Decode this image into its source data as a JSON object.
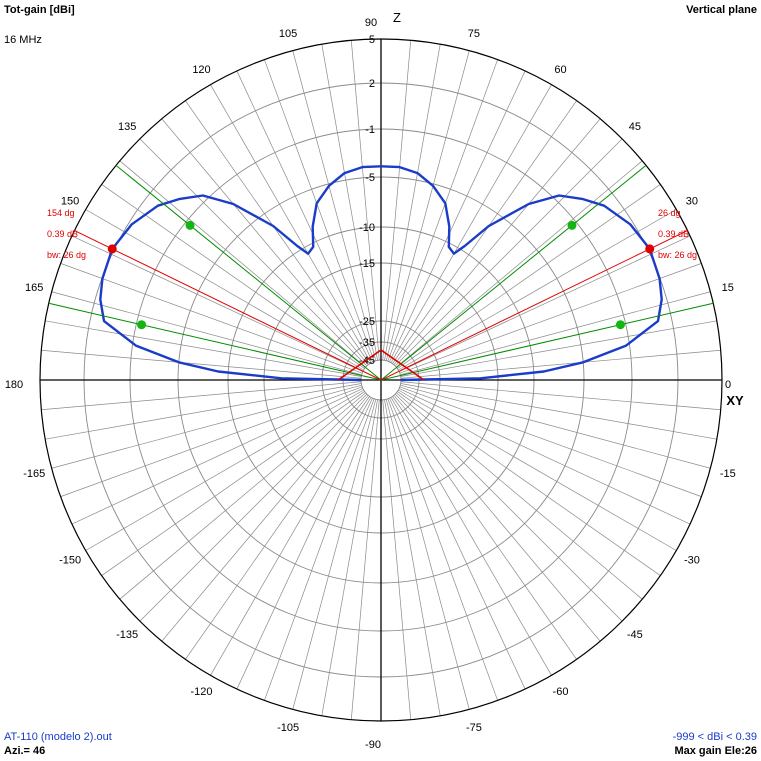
{
  "header": {
    "title": "Tot-gain [dBi]",
    "frequency": "16 MHz",
    "plane": "Vertical plane"
  },
  "footer": {
    "file": "AT-110 (modelo 2).out",
    "azimuth": "Azi.= 46",
    "range": "-999 < dBi < 0.39",
    "max_gain": "Max gain Ele:26"
  },
  "colors": {
    "pattern": "#1a3cc8",
    "max_marker": "#e00000",
    "halfpower": "#008c00",
    "grid": "#8a8a8a",
    "axis": "#000000"
  },
  "chart_data": {
    "type": "polar",
    "title": "Tot-gain [dBi]",
    "subtitle": "Vertical plane",
    "angle_unit": "degrees",
    "angle_ticks": [
      90,
      75,
      60,
      45,
      30,
      15,
      0,
      -15,
      -30,
      -45,
      -60,
      -75,
      -90,
      -105,
      -120,
      -135,
      -150,
      -165,
      180,
      165,
      150,
      135,
      120,
      105
    ],
    "radial_ticks": [
      "5",
      "2",
      "-1",
      "-5",
      "-10",
      "-15",
      "-25",
      "-35",
      "-45"
    ],
    "axis_labels": {
      "up": "Z",
      "right": "XY"
    },
    "series": [
      {
        "points_deg_dbi": [
          [
            0,
            -45
          ],
          [
            1,
            -18
          ],
          [
            3,
            -9
          ],
          [
            5,
            -5
          ],
          [
            8,
            -2.5
          ],
          [
            12,
            -0.5
          ],
          [
            16,
            0.0
          ],
          [
            20,
            0.25
          ],
          [
            26,
            0.39
          ],
          [
            32,
            0.1
          ],
          [
            38,
            -0.5
          ],
          [
            42,
            -1.2
          ],
          [
            46,
            -2.0
          ],
          [
            50,
            -3.5
          ],
          [
            55,
            -6.5
          ],
          [
            58,
            -9.5
          ],
          [
            60,
            -11
          ],
          [
            63,
            -10.5
          ],
          [
            66,
            -8.5
          ],
          [
            70,
            -6.5
          ],
          [
            75,
            -5.2
          ],
          [
            80,
            -4.6
          ],
          [
            85,
            -4.4
          ],
          [
            90,
            -4.4
          ]
        ]
      }
    ],
    "max_markers": [
      {
        "angle": 26,
        "labels": [
          "26 dg",
          "0.39 dB",
          "bw: 26 dg"
        ]
      },
      {
        "angle": 154,
        "labels": [
          "154 dg",
          "0.39 dB",
          "bw: 26 dg"
        ]
      }
    ],
    "halfpower_angles": [
      13,
      39,
      141,
      167
    ],
    "grid": true
  }
}
